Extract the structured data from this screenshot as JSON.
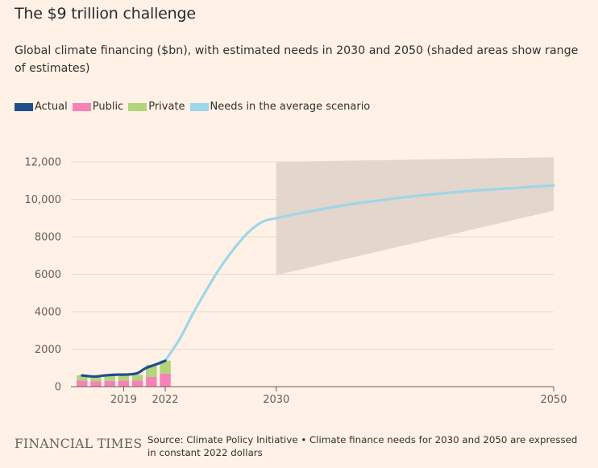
{
  "header": {
    "title": "The $9 trillion challenge",
    "subtitle": "Global climate financing ($bn), with estimated needs in 2030 and 2050 (shaded areas show range of estimates)"
  },
  "legend": [
    {
      "label": "Actual",
      "color": "#1f4e8c"
    },
    {
      "label": "Public",
      "color": "#f781b9"
    },
    {
      "label": "Private",
      "color": "#b3d47c"
    },
    {
      "label": "Needs in the average scenario",
      "color": "#9ed6ea"
    }
  ],
  "footer": {
    "logo": "FINANCIAL TIMES",
    "source": "Source: Climate Policy Initiative • Climate finance needs for 2030 and 2050 are expressed in constant 2022 dollars"
  },
  "chart_data": {
    "type": "bar",
    "title": "The $9 trillion challenge",
    "ylim": [
      0,
      12000
    ],
    "yticks": [
      0,
      2000,
      4000,
      6000,
      8000,
      10000,
      12000
    ],
    "ytick_labels": [
      "0",
      "2000",
      "4000",
      "6000",
      "8000",
      "10,000",
      "12,000"
    ],
    "xlim": [
      2015.2,
      2050
    ],
    "xticks": [
      2019,
      2022,
      2030,
      2050
    ],
    "xtick_labels": [
      "2019",
      "2022",
      "2030",
      "2050"
    ],
    "bars": {
      "categories": [
        2016,
        2017,
        2018,
        2019,
        2020,
        2021,
        2022
      ],
      "series": [
        {
          "name": "Public",
          "color": "#f781b9",
          "values": [
            320,
            280,
            310,
            320,
            330,
            530,
            690
          ]
        },
        {
          "name": "Private",
          "color": "#b3d47c",
          "values": [
            290,
            260,
            300,
            300,
            310,
            640,
            700
          ]
        }
      ]
    },
    "actual": {
      "name": "Actual",
      "color": "#1f4e8c",
      "x": [
        2016,
        2016.5,
        2017,
        2017.5,
        2018,
        2018.5,
        2019,
        2019.5,
        2020,
        2020.5,
        2021,
        2021.5,
        2022
      ],
      "y": [
        600,
        560,
        540,
        590,
        620,
        640,
        640,
        660,
        720,
        950,
        1100,
        1230,
        1380
      ]
    },
    "needs": {
      "name": "Needs in the average scenario",
      "color": "#9ed6ea",
      "x": [
        2022,
        2023,
        2024,
        2025,
        2026,
        2027,
        2028,
        2029,
        2030,
        2032,
        2035,
        2038,
        2041,
        2044,
        2047,
        2050
      ],
      "y": [
        1380,
        2500,
        3900,
        5200,
        6400,
        7400,
        8250,
        8800,
        9000,
        9300,
        9700,
        10000,
        10250,
        10450,
        10600,
        10750
      ]
    },
    "range": {
      "color": "#e3d6cd",
      "x": [
        2030,
        2050
      ],
      "low": [
        5950,
        9400
      ],
      "high": [
        12000,
        12250
      ]
    },
    "grid": true
  }
}
